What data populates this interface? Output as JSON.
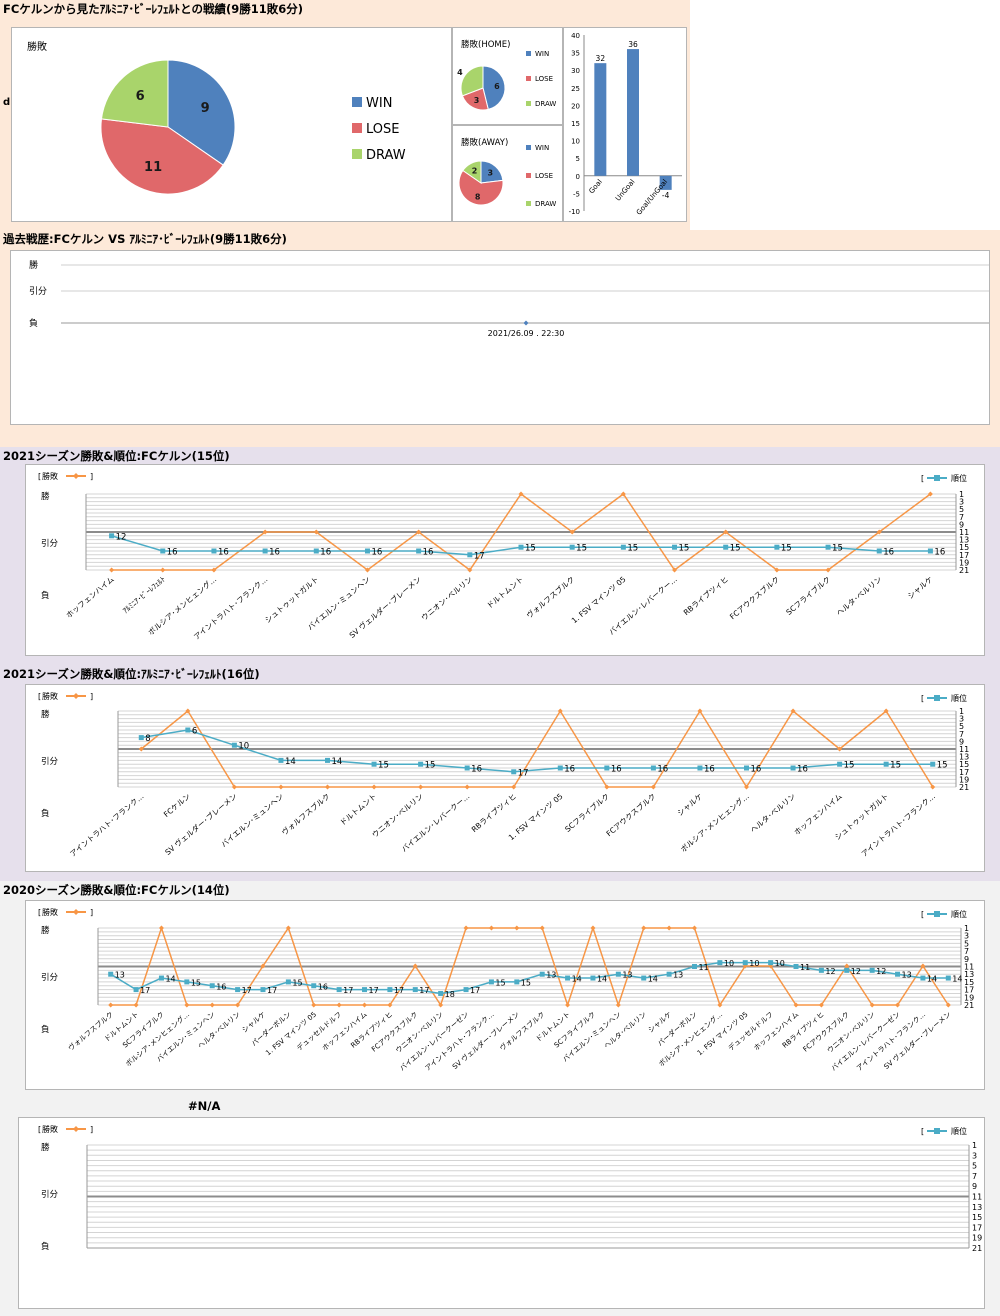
{
  "summary": {
    "title": "FCケルンから見たｱﾙﾐﾆｱ･ﾋﾞｰﾚﾌｪﾙﾄとの戦績(9勝11敗6分)",
    "stray_letter": "d",
    "main_pie_label": "勝敗",
    "home_pie_label": "勝敗(HOME)",
    "away_pie_label": "勝敗(AWAY)",
    "legend": [
      "WIN",
      "LOSE",
      "DRAW"
    ],
    "colors": {
      "win": "#4f81bd",
      "lose": "#e0686a",
      "draw": "#a9d46b",
      "bar": "#4f81bd"
    }
  },
  "history": {
    "title": "過去戦歴:FCケルン VS ｱﾙﾐﾆｱ･ﾋﾞｰﾚﾌｪﾙﾄ(9勝11敗6分)",
    "y_labels": [
      "勝",
      "引分",
      "負"
    ],
    "point_label": "2021/26.09 . 22:30"
  },
  "season_labels": {
    "result": "勝敗",
    "rank": "順位",
    "y_win": "勝",
    "y_draw": "引分",
    "y_lose": "負"
  },
  "panels": [
    {
      "title": "2021シーズン勝敗&順位:FCケルン(15位)"
    },
    {
      "title": "2021シーズン勝敗&順位:ｱﾙﾐﾆｱ･ﾋﾞｰﾚﾌｪﾙﾄ(16位)"
    },
    {
      "title": "2020シーズン勝敗&順位:FCケルン(14位)"
    },
    {
      "title": "#N/A"
    }
  ],
  "chart_data": [
    {
      "type": "pie",
      "title": "勝敗",
      "categories": [
        "WIN",
        "LOSE",
        "DRAW"
      ],
      "values": [
        9,
        11,
        6
      ]
    },
    {
      "type": "pie",
      "title": "勝敗(HOME)",
      "categories": [
        "WIN",
        "LOSE",
        "DRAW"
      ],
      "values": [
        6,
        3,
        4
      ]
    },
    {
      "type": "pie",
      "title": "勝敗(AWAY)",
      "categories": [
        "WIN",
        "LOSE",
        "DRAW"
      ],
      "values": [
        3,
        8,
        2
      ]
    },
    {
      "type": "bar",
      "categories": [
        "Goal",
        "UnGoal",
        "Goal/UnGoal"
      ],
      "values": [
        32,
        36,
        -4
      ],
      "ylim": [
        -10,
        40
      ],
      "yticks": [
        -10,
        -5,
        0,
        5,
        10,
        15,
        20,
        25,
        30,
        35,
        40
      ]
    },
    {
      "type": "scatter",
      "title": "過去戦歴:FCケルン VS ｱﾙﾐﾆｱ･ﾋﾞｰﾚﾌｪﾙﾄ(9勝11敗6分)",
      "categories": [
        "勝",
        "引分",
        "負"
      ],
      "x": [
        "2021/26.09 . 22:30"
      ],
      "values": [
        "負"
      ]
    },
    {
      "type": "line",
      "title": "2021シーズン勝敗&順位:FCケルン(15位)",
      "categories": [
        "ホッフェンハイム",
        "ｱﾙﾐﾆｱ･ﾋﾞｰﾚﾌｪﾙﾄ",
        "ボルシア･メンヒェング…",
        "アイントラハト･フランク…",
        "シュトゥットガルト",
        "バイエルン･ミュンヘン",
        "SV ヴェルダー･ブレーメン",
        "ウニオン･ベルリン",
        "ドルトムント",
        "ヴォルフスブルク",
        "1. FSV マインツ 05",
        "バイエルン･レバークー…",
        "RBライプツィヒ",
        "FCアウクスブルク",
        "SCフライブルク",
        "ヘルタ･ベルリン",
        "シャルケ"
      ],
      "series": [
        {
          "name": "勝敗",
          "values": [
            "負",
            "負",
            "負",
            "引分",
            "引分",
            "負",
            "引分",
            "負",
            "勝",
            "引分",
            "勝",
            "負",
            "引分",
            "負",
            "負",
            "引分",
            "勝"
          ]
        },
        {
          "name": "順位",
          "values": [
            12,
            16,
            16,
            16,
            16,
            16,
            16,
            17,
            15,
            15,
            15,
            15,
            15,
            15,
            15,
            16,
            16
          ]
        }
      ],
      "rank_axis": [
        1,
        3,
        5,
        7,
        9,
        11,
        13,
        15,
        17,
        19,
        21
      ]
    },
    {
      "type": "line",
      "title": "2021シーズン勝敗&順位:ｱﾙﾐﾆｱ･ﾋﾞｰﾚﾌｪﾙﾄ(16位)",
      "categories": [
        "アイントラハト･フランク…",
        "FCケルン",
        "SV ヴェルダー･ブレーメン",
        "バイエルン･ミュンヘン",
        "ヴォルフスブルク",
        "ドルトムント",
        "ウニオン･ベルリン",
        "バイエルン･レバークー…",
        "RBライプツィヒ",
        "1. FSV マインツ 05",
        "SCフライブルク",
        "FCアウクスブルク",
        "シャルケ",
        "ボルシア･メンヒェング…",
        "ヘルタ･ベルリン",
        "ホッフェンハイム",
        "シュトゥットガルト",
        "アイントラハト･フランク…"
      ],
      "series": [
        {
          "name": "勝敗",
          "values": [
            "引分",
            "勝",
            "負",
            "負",
            "負",
            "負",
            "負",
            "負",
            "負",
            "勝",
            "負",
            "負",
            "勝",
            "負",
            "勝",
            "引分",
            "勝",
            "負"
          ]
        },
        {
          "name": "順位",
          "values": [
            8,
            6,
            10,
            14,
            14,
            15,
            15,
            16,
            17,
            16,
            16,
            16,
            16,
            16,
            16,
            15,
            15,
            15
          ]
        }
      ],
      "rank_axis": [
        1,
        3,
        5,
        7,
        9,
        11,
        13,
        15,
        17,
        19,
        21
      ]
    },
    {
      "type": "line",
      "title": "2020シーズン勝敗&順位:FCケルン(14位)",
      "categories": [
        "ヴォルフスブルク",
        "ドルトムント",
        "SCフライブルク",
        "ボルシア･メンヒェング…",
        "バイエルン･ミュンヘン",
        "ヘルタ･ベルリン",
        "シャルケ",
        "パーダーボルン",
        "1. FSV マインツ 05",
        "デュッセルドルフ",
        "ホッフェンハイム",
        "RBライプツィヒ",
        "FCアウクスブルク",
        "ウニオン･ベルリン",
        "バイエルン･レバークーゼン",
        "アイントラハト･フランク…",
        "SV ヴェルダー･ブレーメン",
        "ヴォルフスブルク",
        "ドルトムント",
        "SCフライブルク",
        "バイエルン･ミュンヘン",
        "ヘルタ･ベルリン",
        "シャルケ",
        "パーダーボルン",
        "ボルシア･メンヒェング…",
        "1. FSV マインツ 05",
        "デュッセルドルフ",
        "ホッフェンハイム",
        "RBライプツィヒ",
        "FCアウクスブルク",
        "ウニオン･ベルリン",
        "バイエルン･レバークーゼン",
        "アイントラハト･フランク…",
        "SV ヴェルダー･ブレーメン"
      ],
      "series": [
        {
          "name": "勝敗",
          "values": [
            "負",
            "負",
            "勝",
            "負",
            "負",
            "負",
            "引分",
            "勝",
            "負",
            "負",
            "負",
            "負",
            "引分",
            "負",
            "勝",
            "勝",
            "勝",
            "勝",
            "負",
            "勝",
            "負",
            "勝",
            "勝",
            "勝",
            "負",
            "引分",
            "引分",
            "負",
            "負",
            "引分",
            "負",
            "負",
            "引分",
            "負"
          ]
        },
        {
          "name": "順位",
          "values": [
            13,
            17,
            14,
            15,
            16,
            17,
            17,
            15,
            16,
            17,
            17,
            17,
            17,
            18,
            17,
            15,
            15,
            13,
            14,
            14,
            13,
            14,
            13,
            11,
            10,
            10,
            10,
            11,
            12,
            12,
            12,
            13,
            14,
            14
          ]
        }
      ],
      "rank_axis": [
        1,
        3,
        5,
        7,
        9,
        11,
        13,
        15,
        17,
        19,
        21
      ]
    },
    {
      "type": "line",
      "title": "#N/A",
      "categories": [],
      "series": [
        {
          "name": "勝敗",
          "values": []
        },
        {
          "name": "順位",
          "values": []
        }
      ],
      "rank_axis": [
        1,
        3,
        5,
        7,
        9,
        11,
        13,
        15,
        17,
        19,
        21
      ]
    }
  ]
}
